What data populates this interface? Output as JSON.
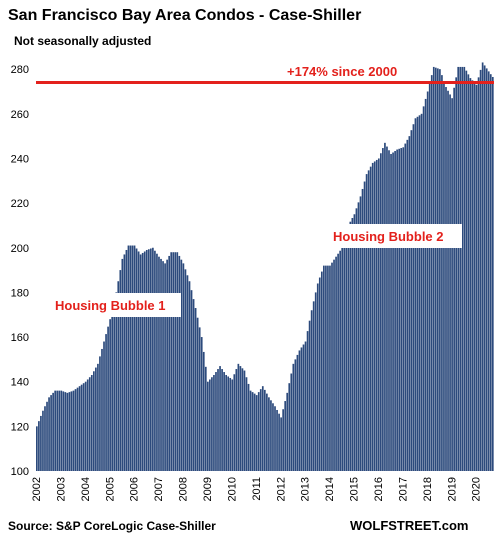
{
  "chart_data": {
    "type": "bar",
    "title": "San Francisco Bay Area Condos - Case-Shiller",
    "subtitle": "Not seasonally adjusted",
    "source": "Source: S&P CoreLogic Case-Shiller",
    "brand": "WOLFSTREET.com",
    "ylim": [
      100,
      285
    ],
    "yticks": [
      100,
      120,
      140,
      160,
      180,
      200,
      220,
      240,
      260,
      280
    ],
    "x_tick_labels": [
      "2002",
      "2003",
      "2004",
      "2005",
      "2006",
      "2007",
      "2008",
      "2009",
      "2010",
      "2011",
      "2012",
      "2013",
      "2014",
      "2015",
      "2016",
      "2017",
      "2018",
      "2019",
      "2020"
    ],
    "start_year": 2002,
    "frequency": "monthly",
    "bar_color": "#2c4a7c",
    "reference_line": {
      "value": 274,
      "color": "#e3211c",
      "label": "+174% since 2000"
    },
    "annotations": [
      {
        "text": "Housing Bubble 1",
        "color": "#e3211c"
      },
      {
        "text": "Housing Bubble 2",
        "color": "#e3211c"
      }
    ],
    "anchors": [
      [
        2002.0,
        120
      ],
      [
        2002.25,
        127
      ],
      [
        2002.5,
        133
      ],
      [
        2002.75,
        136
      ],
      [
        2003.0,
        136
      ],
      [
        2003.25,
        135
      ],
      [
        2003.5,
        136
      ],
      [
        2003.75,
        138
      ],
      [
        2004.0,
        140
      ],
      [
        2004.25,
        143
      ],
      [
        2004.5,
        148
      ],
      [
        2004.75,
        158
      ],
      [
        2005.0,
        168
      ],
      [
        2005.25,
        180
      ],
      [
        2005.5,
        195
      ],
      [
        2005.75,
        201
      ],
      [
        2006.0,
        201
      ],
      [
        2006.25,
        197
      ],
      [
        2006.5,
        199
      ],
      [
        2006.75,
        200
      ],
      [
        2007.0,
        196
      ],
      [
        2007.25,
        193
      ],
      [
        2007.5,
        198
      ],
      [
        2007.75,
        198
      ],
      [
        2008.0,
        193
      ],
      [
        2008.25,
        185
      ],
      [
        2008.5,
        173
      ],
      [
        2008.75,
        160
      ],
      [
        2009.0,
        140
      ],
      [
        2009.25,
        143
      ],
      [
        2009.5,
        147
      ],
      [
        2009.75,
        143
      ],
      [
        2010.0,
        141
      ],
      [
        2010.25,
        148
      ],
      [
        2010.5,
        145
      ],
      [
        2010.75,
        136
      ],
      [
        2011.0,
        134
      ],
      [
        2011.25,
        138
      ],
      [
        2011.5,
        133
      ],
      [
        2011.75,
        129
      ],
      [
        2012.0,
        124
      ],
      [
        2012.25,
        135
      ],
      [
        2012.5,
        148
      ],
      [
        2012.75,
        154
      ],
      [
        2013.0,
        158
      ],
      [
        2013.25,
        172
      ],
      [
        2013.5,
        184
      ],
      [
        2013.75,
        192
      ],
      [
        2014.0,
        192
      ],
      [
        2014.25,
        196
      ],
      [
        2014.5,
        200
      ],
      [
        2014.75,
        210
      ],
      [
        2015.0,
        215
      ],
      [
        2015.25,
        223
      ],
      [
        2015.5,
        233
      ],
      [
        2015.75,
        238
      ],
      [
        2016.0,
        240
      ],
      [
        2016.25,
        247
      ],
      [
        2016.5,
        242
      ],
      [
        2016.75,
        244
      ],
      [
        2017.0,
        245
      ],
      [
        2017.25,
        250
      ],
      [
        2017.5,
        258
      ],
      [
        2017.75,
        260
      ],
      [
        2018.0,
        270
      ],
      [
        2018.25,
        281
      ],
      [
        2018.5,
        280
      ],
      [
        2018.75,
        272
      ],
      [
        2019.0,
        267
      ],
      [
        2019.25,
        281
      ],
      [
        2019.5,
        281
      ],
      [
        2019.75,
        276
      ],
      [
        2020.0,
        273
      ],
      [
        2020.25,
        283
      ],
      [
        2020.5,
        279
      ],
      [
        2020.7,
        276
      ]
    ]
  }
}
